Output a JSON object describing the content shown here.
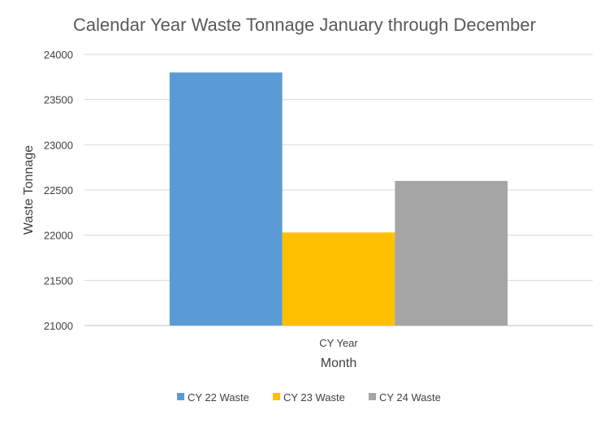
{
  "chart_data": {
    "type": "bar",
    "title": "Calendar Year Waste Tonnage January through December",
    "xlabel": "Month",
    "ylabel": "Waste Tonnage",
    "categories": [
      "CY Year"
    ],
    "series": [
      {
        "name": "CY 22 Waste",
        "values": [
          23800
        ],
        "color": "#5b9bd5"
      },
      {
        "name": "CY 23 Waste",
        "values": [
          22030
        ],
        "color": "#ffc000"
      },
      {
        "name": "CY 24 Waste",
        "values": [
          22600
        ],
        "color": "#a5a5a5"
      }
    ],
    "ylim": [
      21000,
      24000
    ],
    "yticks": [
      21000,
      21500,
      22000,
      22500,
      23000,
      23500,
      24000
    ],
    "grid": true,
    "legend_position": "bottom"
  }
}
